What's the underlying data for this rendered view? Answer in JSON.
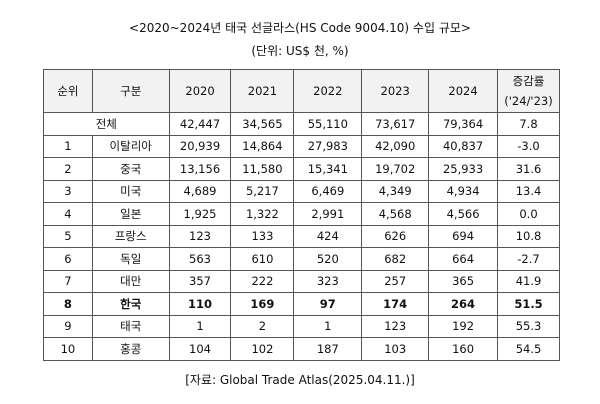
{
  "title": "<2020~2024년 태국 선글라스(HS Code 9004.10) 수입 규모>",
  "unit": "(단위: US$ 천, %)",
  "headers": [
    "순위",
    "구분",
    "2020",
    "2021",
    "2022",
    "2023",
    "2024",
    "증감률",
    "('24/'23)"
  ],
  "total": {
    "label": "전체",
    "values": [
      "42,447",
      "34,565",
      "55,110",
      "73,617",
      "79,364",
      "7.8"
    ]
  },
  "rows": [
    {
      "rank": "1",
      "name": "이탈리아",
      "values": [
        "20,939",
        "14,864",
        "27,983",
        "42,090",
        "40,837",
        "-3.0"
      ]
    },
    {
      "rank": "2",
      "name": "중국",
      "values": [
        "13,156",
        "11,580",
        "15,341",
        "19,702",
        "25,933",
        "31.6"
      ]
    },
    {
      "rank": "3",
      "name": "미국",
      "values": [
        "4,689",
        "5,217",
        "6,469",
        "4,349",
        "4,934",
        "13.4"
      ]
    },
    {
      "rank": "4",
      "name": "일본",
      "values": [
        "1,925",
        "1,322",
        "2,991",
        "4,568",
        "4,566",
        "0.0"
      ]
    },
    {
      "rank": "5",
      "name": "프랑스",
      "values": [
        "123",
        "133",
        "424",
        "626",
        "694",
        "10.8"
      ]
    },
    {
      "rank": "6",
      "name": "독일",
      "values": [
        "563",
        "610",
        "520",
        "682",
        "664",
        "-2.7"
      ]
    },
    {
      "rank": "7",
      "name": "대만",
      "values": [
        "357",
        "222",
        "323",
        "257",
        "365",
        "41.9"
      ]
    },
    {
      "rank": "8",
      "name": "한국",
      "values": [
        "110",
        "169",
        "97",
        "174",
        "264",
        "51.5"
      ],
      "bold": true
    },
    {
      "rank": "9",
      "name": "태국",
      "values": [
        "1",
        "2",
        "1",
        "123",
        "192",
        "55.3"
      ]
    },
    {
      "rank": "10",
      "name": "홍콩",
      "values": [
        "104",
        "102",
        "187",
        "103",
        "160",
        "54.5"
      ]
    }
  ],
  "source": "[자료: Global Trade Atlas(2025.04.11.)]"
}
